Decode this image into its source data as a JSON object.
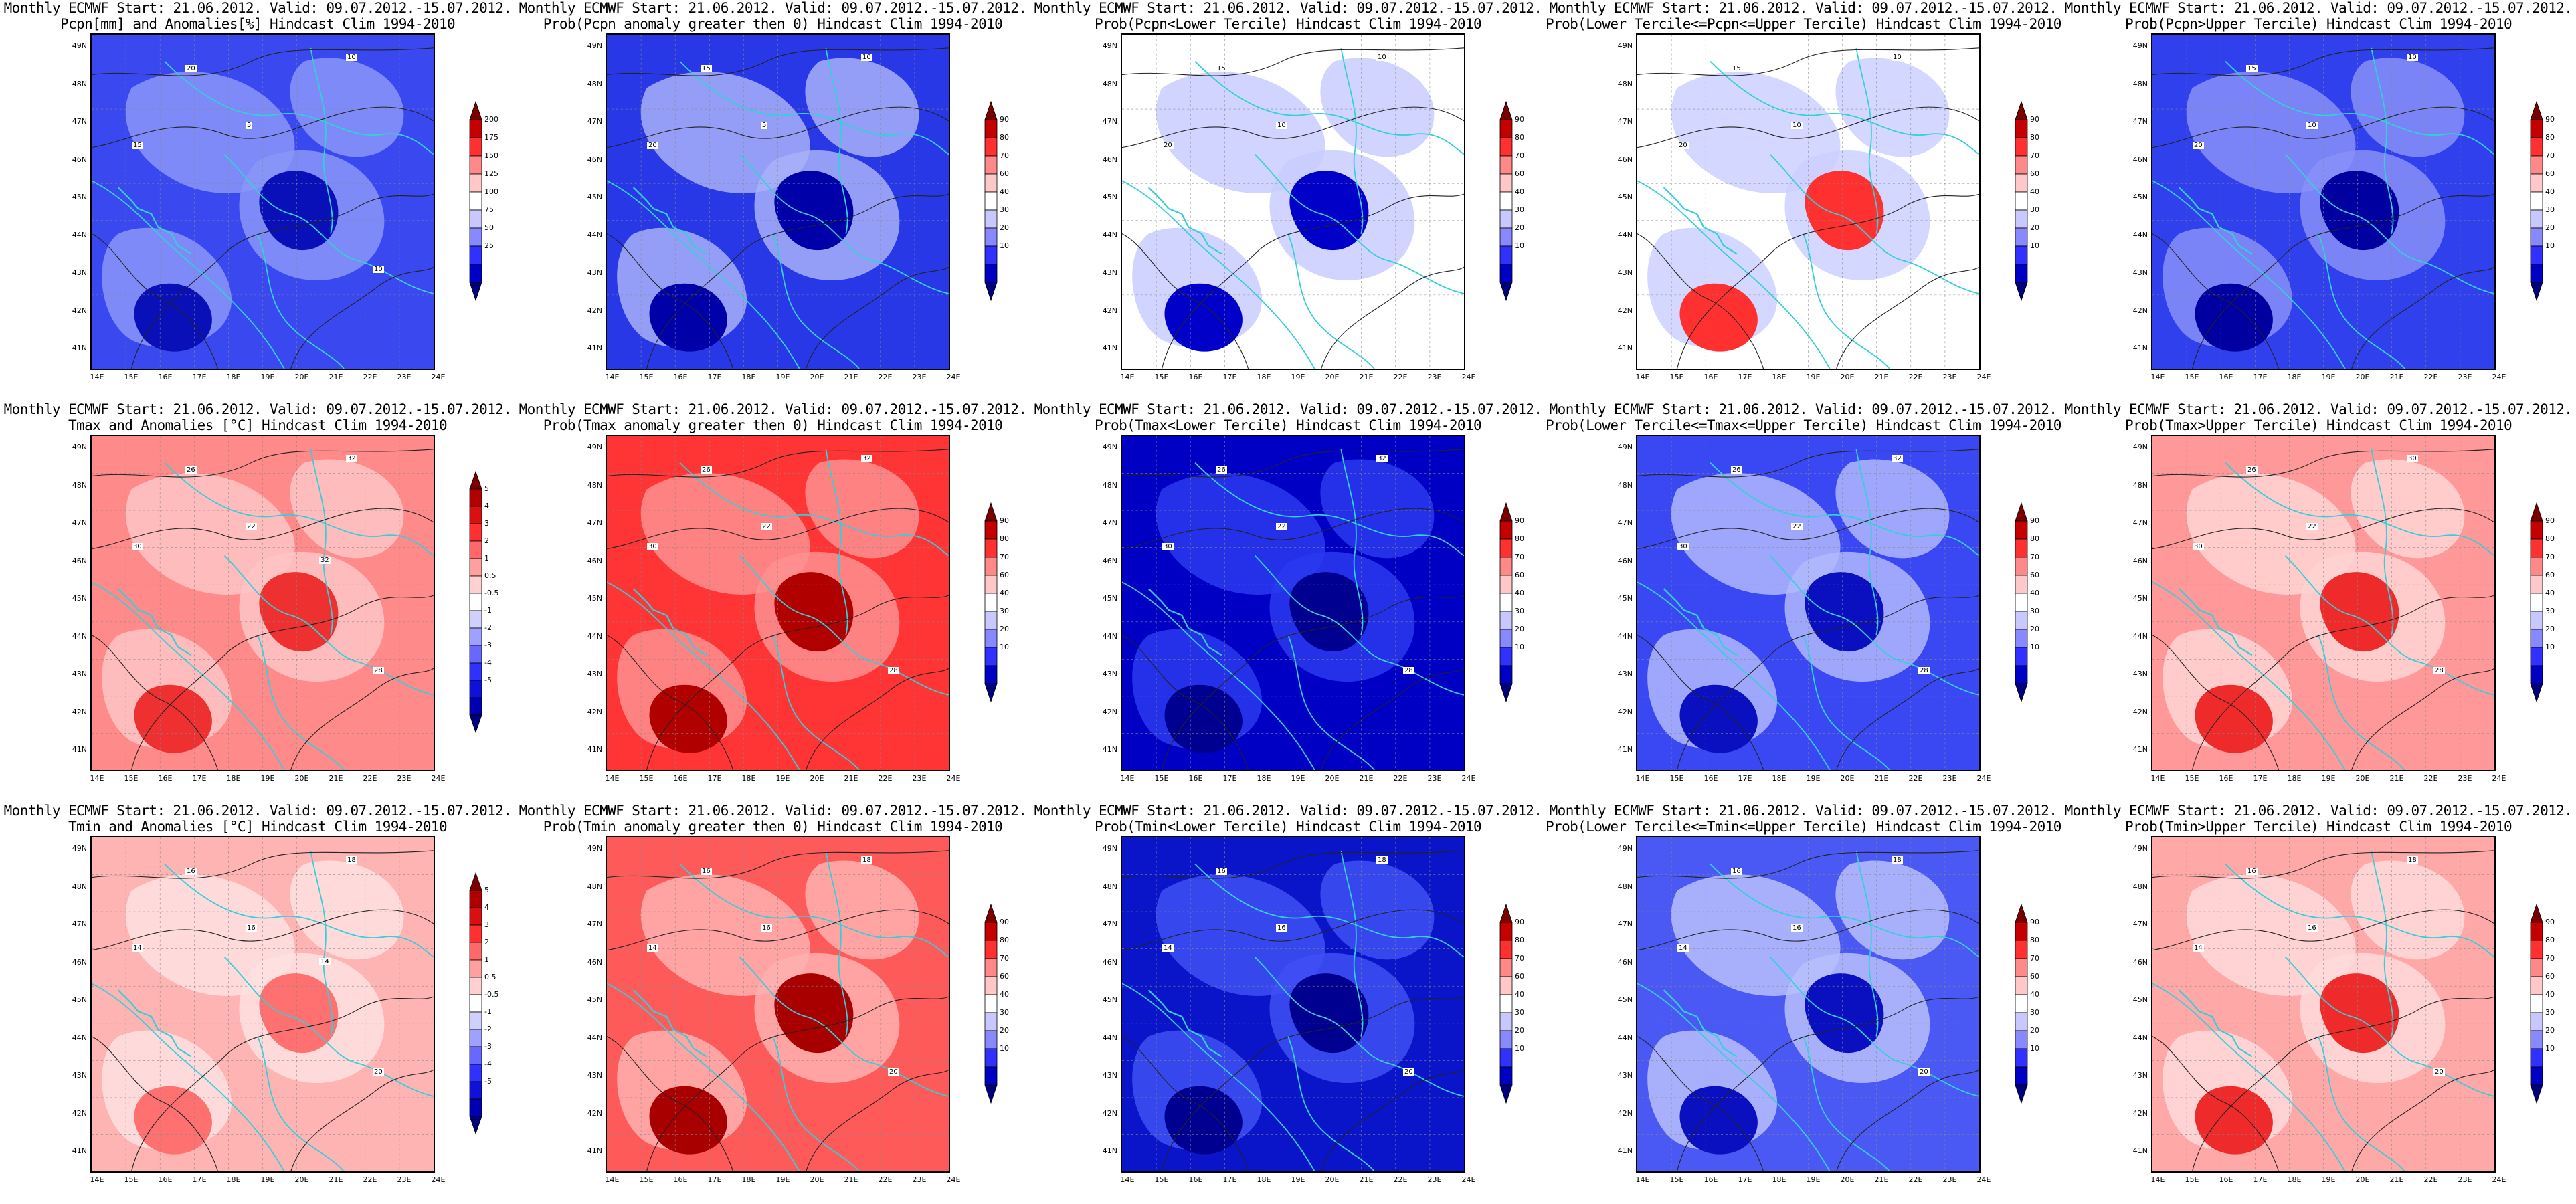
{
  "common": {
    "line1": "Monthly ECMWF Start: 21.06.2012. Valid: 09.07.2012.-15.07.2012.",
    "lat_labels": [
      "49N",
      "48N",
      "47N",
      "46N",
      "45N",
      "44N",
      "43N",
      "42N",
      "41N"
    ],
    "lon_labels": [
      "14E",
      "15E",
      "16E",
      "17E",
      "18E",
      "19E",
      "20E",
      "21E",
      "22E",
      "23E",
      "24E"
    ]
  },
  "colorbars": {
    "precip_anom": {
      "labels": [
        "200",
        "175",
        "150",
        "125",
        "100",
        "75",
        "50",
        "25"
      ],
      "colors": [
        "#7a0000",
        "#c40000",
        "#ff3030",
        "#ff8888",
        "#ffc8c8",
        "#ffffff",
        "#c8c8ff",
        "#8888ff",
        "#3030ff",
        "#0000c4",
        "#00007a"
      ]
    },
    "temp_anom": {
      "labels": [
        "5",
        "4",
        "3",
        "2",
        "1",
        "0.5",
        "-0.5",
        "-1",
        "-2",
        "-3",
        "-4",
        "-5"
      ],
      "colors": [
        "#7a0000",
        "#b00000",
        "#d81010",
        "#ff3030",
        "#ff6868",
        "#ffa0a0",
        "#ffd0d0",
        "#ffffff",
        "#d0d0ff",
        "#a0a0ff",
        "#6868ff",
        "#3030ff",
        "#1010d8",
        "#0000b0",
        "#00007a"
      ]
    },
    "prob": {
      "labels": [
        "90",
        "80",
        "70",
        "60",
        "40",
        "30",
        "20",
        "10"
      ],
      "colors": [
        "#7a0000",
        "#c40000",
        "#ff3030",
        "#ff8888",
        "#ffc8c8",
        "#ffffff",
        "#c8c8ff",
        "#8888ff",
        "#3030ff",
        "#0000c4",
        "#00007a"
      ]
    }
  },
  "panels": [
    {
      "line2": "Pcpn[mm] and Anomalies[%] Hindcast Clim 1994-2010",
      "cbar": "precip_anom",
      "fill": "#3a48f0",
      "dark": "#0a10b8",
      "light": "#8a96f8",
      "contours": [
        "20",
        "10",
        "15",
        "5",
        "10"
      ]
    },
    {
      "line2": "Prob(Pcpn anomaly greater then 0) Hindcast Clim 1994-2010",
      "cbar": "prob",
      "fill": "#2838e6",
      "dark": "#0000a8",
      "light": "#a8b0f8",
      "contours": [
        "15",
        "10",
        "20",
        "5"
      ]
    },
    {
      "line2": "Prob(Pcpn<Lower Tercile) Hindcast Clim 1994-2010",
      "cbar": "prob",
      "fill": "#ffffff",
      "dark": "#0000c8",
      "light": "#c8ccff",
      "contours": [
        "15",
        "10",
        "20",
        "10"
      ]
    },
    {
      "line2": "Prob(Lower Tercile<=Pcpn<=Upper Tercile) Hindcast Clim 1994-2010",
      "cbar": "prob",
      "fill": "#ffffff",
      "dark": "#ff3030",
      "light": "#ccd0ff",
      "contours": [
        "15",
        "10",
        "20",
        "10"
      ]
    },
    {
      "line2": "Prob(Pcpn>Upper Tercile) Hindcast Clim 1994-2010",
      "cbar": "prob",
      "fill": "#3040ec",
      "dark": "#0000a0",
      "light": "#8890f8",
      "contours": [
        "15",
        "10",
        "20",
        "10"
      ]
    },
    {
      "line2": "Tmax and Anomalies [°C] Hindcast Clim 1994-2010",
      "cbar": "temp_anom",
      "fill": "#ff8a8a",
      "dark": "#ee3030",
      "light": "#ffc4c4",
      "contours": [
        "26",
        "32",
        "30",
        "22",
        "28",
        "32"
      ]
    },
    {
      "line2": "Prob(Tmax anomaly greater then 0) Hindcast Clim 1994-2010",
      "cbar": "prob",
      "fill": "#ff3434",
      "dark": "#b00000",
      "light": "#ff9090",
      "contours": [
        "26",
        "32",
        "30",
        "22",
        "28"
      ]
    },
    {
      "line2": "Prob(Tmax<Lower Tercile) Hindcast Clim 1994-2010",
      "cbar": "prob",
      "fill": "#0000c4",
      "dark": "#000090",
      "light": "#2a3af0",
      "contours": [
        "26",
        "32",
        "30",
        "22",
        "28"
      ]
    },
    {
      "line2": "Prob(Lower Tercile<=Tmax<=Upper Tercile) Hindcast Clim 1994-2010",
      "cbar": "prob",
      "fill": "#3a48f4",
      "dark": "#0a10c0",
      "light": "#b0b8fc",
      "contours": [
        "26",
        "32",
        "30",
        "22",
        "28"
      ]
    },
    {
      "line2": "Prob(Tmax>Upper Tercile) Hindcast Clim 1994-2010",
      "cbar": "prob",
      "fill": "#ff9898",
      "dark": "#ee2a2a",
      "light": "#ffd4d4",
      "contours": [
        "26",
        "30",
        "30",
        "22",
        "28"
      ]
    },
    {
      "line2": "Tmin and Anomalies [°C] Hindcast Clim 1994-2010",
      "cbar": "temp_anom",
      "fill": "#ffb4b4",
      "dark": "#ff7070",
      "light": "#ffe0e0",
      "contours": [
        "16",
        "18",
        "14",
        "16",
        "20",
        "14"
      ]
    },
    {
      "line2": "Prob(Tmin anomaly greater then 0) Hindcast Clim 1994-2010",
      "cbar": "prob",
      "fill": "#ff5a5a",
      "dark": "#a80000",
      "light": "#ffb0b0",
      "contours": [
        "16",
        "18",
        "14",
        "16",
        "20"
      ]
    },
    {
      "line2": "Prob(Tmin<Lower Tercile) Hindcast Clim 1994-2010",
      "cbar": "prob",
      "fill": "#0a14c8",
      "dark": "#000090",
      "light": "#4050f4",
      "contours": [
        "16",
        "18",
        "14",
        "16",
        "20"
      ]
    },
    {
      "line2": "Prob(Lower Tercile<=Tmin<=Upper Tercile) Hindcast Clim 1994-2010",
      "cbar": "prob",
      "fill": "#4a58f4",
      "dark": "#0a10c0",
      "light": "#b8c0fc",
      "contours": [
        "16",
        "18",
        "14",
        "16",
        "20"
      ]
    },
    {
      "line2": "Prob(Tmin>Upper Tercile) Hindcast Clim 1994-2010",
      "cbar": "prob",
      "fill": "#ffa8a8",
      "dark": "#ee2a2a",
      "light": "#ffdada",
      "contours": [
        "16",
        "18",
        "14",
        "16",
        "20"
      ]
    }
  ]
}
